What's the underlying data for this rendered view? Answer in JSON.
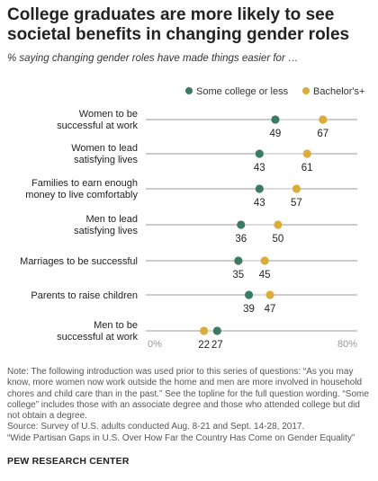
{
  "title": "College graduates are more likely to see societal benefits in changing gender roles",
  "subtitle": "% saying changing gender roles have made things easier for …",
  "colors": {
    "some_college": "#3d7a62",
    "bachelors": "#d9ac3b",
    "rule": "#999999",
    "axis_label": "#999999"
  },
  "chart_data": {
    "type": "dot",
    "xlim": [
      0,
      80
    ],
    "xticks": [
      "0%",
      "80%"
    ],
    "legend_position": "top-right",
    "series": [
      {
        "name": "Some college or less",
        "values": [
          49,
          43,
          43,
          36,
          35,
          39,
          27
        ]
      },
      {
        "name": "Bachelor's+",
        "values": [
          67,
          61,
          57,
          50,
          45,
          47,
          22
        ]
      }
    ],
    "categories": [
      [
        "Women to be",
        "successful at work"
      ],
      [
        "Women to lead",
        "satisfying lives"
      ],
      [
        "Families to earn enough",
        "money to live comfortably"
      ],
      [
        "Men to lead",
        "satisfying lives"
      ],
      [
        "Marriages to be successful"
      ],
      [
        "Parents to raise children"
      ],
      [
        "Men to be",
        "successful at work"
      ]
    ]
  },
  "notes": {
    "note": "Note: The following introduction was used prior to this series of questions: “As you may know, more women now work outside the home and men are more involved in household chores and child care than in the past.” See the topline for the full question wording. “Some college” includes those with an associate degree and those who attended college but did not obtain a degree.",
    "source": "Source: Survey of U.S. adults conducted Aug. 8-21 and Sept. 14-28, 2017.",
    "report": "“Wide Partisan Gaps in U.S. Over How Far the Country Has Come on Gender Equality”",
    "org": "PEW RESEARCH CENTER"
  }
}
